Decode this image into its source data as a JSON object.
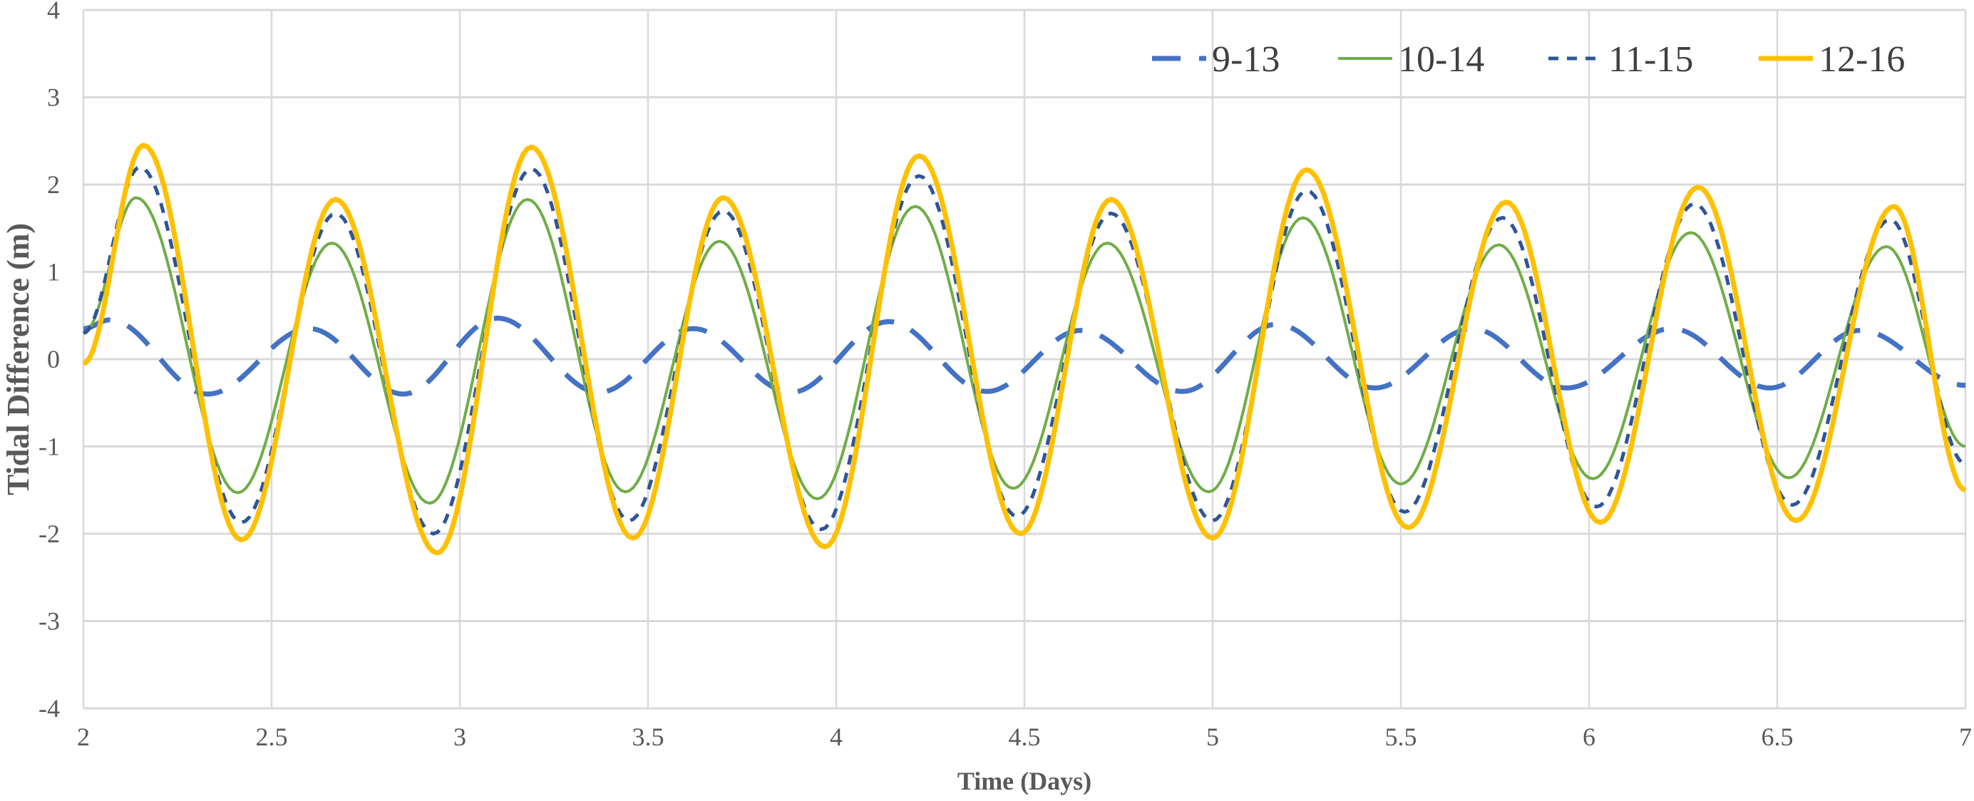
{
  "chart_data": {
    "type": "line",
    "title": "",
    "xlabel": "Time (Days)",
    "ylabel": "Tidal Difference (m)",
    "xlim": [
      2,
      7
    ],
    "ylim": [
      -4,
      4
    ],
    "xticks": [
      "2",
      "2.5",
      "3",
      "3.5",
      "4",
      "4.5",
      "5",
      "5.5",
      "6",
      "6.5",
      "7"
    ],
    "yticks": [
      "4",
      "3",
      "2",
      "1",
      "0",
      "-1",
      "-2",
      "-3",
      "-4"
    ],
    "grid": true,
    "legend_position": "top-right",
    "series": [
      {
        "name": "9-13",
        "color": "#4472C4",
        "style": "long-dash",
        "points": [
          [
            2,
            0.35
          ],
          [
            2.07,
            0.45
          ],
          [
            2.33,
            -0.4
          ],
          [
            2.6,
            0.35
          ],
          [
            2.85,
            -0.4
          ],
          [
            3.1,
            0.47
          ],
          [
            3.37,
            -0.38
          ],
          [
            3.62,
            0.35
          ],
          [
            3.88,
            -0.38
          ],
          [
            4.14,
            0.43
          ],
          [
            4.4,
            -0.37
          ],
          [
            4.65,
            0.33
          ],
          [
            4.92,
            -0.37
          ],
          [
            5.17,
            0.4
          ],
          [
            5.43,
            -0.33
          ],
          [
            5.69,
            0.35
          ],
          [
            5.94,
            -0.33
          ],
          [
            6.22,
            0.35
          ],
          [
            6.48,
            -0.33
          ],
          [
            6.72,
            0.33
          ],
          [
            7,
            -0.3
          ]
        ]
      },
      {
        "name": "10-14",
        "color": "#70AD47",
        "style": "solid",
        "points": [
          [
            2,
            0.3
          ],
          [
            2.14,
            1.85
          ],
          [
            2.41,
            -1.53
          ],
          [
            2.66,
            1.33
          ],
          [
            2.92,
            -1.65
          ],
          [
            3.18,
            1.83
          ],
          [
            3.44,
            -1.52
          ],
          [
            3.69,
            1.35
          ],
          [
            3.95,
            -1.6
          ],
          [
            4.21,
            1.75
          ],
          [
            4.47,
            -1.48
          ],
          [
            4.72,
            1.33
          ],
          [
            4.99,
            -1.52
          ],
          [
            5.24,
            1.62
          ],
          [
            5.5,
            -1.43
          ],
          [
            5.76,
            1.31
          ],
          [
            6.01,
            -1.37
          ],
          [
            6.27,
            1.45
          ],
          [
            6.53,
            -1.36
          ],
          [
            6.79,
            1.29
          ],
          [
            7,
            -1.0
          ]
        ]
      },
      {
        "name": "11-15",
        "color": "#2F5597",
        "style": "short-dash",
        "points": [
          [
            2,
            0.3
          ],
          [
            2.15,
            2.2
          ],
          [
            2.42,
            -1.87
          ],
          [
            2.67,
            1.67
          ],
          [
            2.93,
            -2.0
          ],
          [
            3.19,
            2.18
          ],
          [
            3.45,
            -1.85
          ],
          [
            3.7,
            1.7
          ],
          [
            3.96,
            -1.95
          ],
          [
            4.22,
            2.1
          ],
          [
            4.48,
            -1.8
          ],
          [
            4.73,
            1.67
          ],
          [
            5.0,
            -1.85
          ],
          [
            5.25,
            1.93
          ],
          [
            5.51,
            -1.75
          ],
          [
            5.77,
            1.62
          ],
          [
            6.02,
            -1.69
          ],
          [
            6.28,
            1.78
          ],
          [
            6.54,
            -1.67
          ],
          [
            6.8,
            1.6
          ],
          [
            7,
            -1.2
          ]
        ]
      },
      {
        "name": "12-16",
        "color": "#FFC000",
        "style": "solid-thick",
        "points": [
          [
            2,
            -0.05
          ],
          [
            2.16,
            2.45
          ],
          [
            2.42,
            -2.07
          ],
          [
            2.67,
            1.83
          ],
          [
            2.94,
            -2.22
          ],
          [
            3.19,
            2.43
          ],
          [
            3.46,
            -2.05
          ],
          [
            3.7,
            1.85
          ],
          [
            3.97,
            -2.15
          ],
          [
            4.22,
            2.33
          ],
          [
            4.49,
            -2.0
          ],
          [
            4.73,
            1.83
          ],
          [
            5.0,
            -2.05
          ],
          [
            5.25,
            2.17
          ],
          [
            5.52,
            -1.93
          ],
          [
            5.78,
            1.8
          ],
          [
            6.03,
            -1.87
          ],
          [
            6.29,
            1.97
          ],
          [
            6.55,
            -1.85
          ],
          [
            6.81,
            1.75
          ],
          [
            7,
            -1.5
          ]
        ]
      }
    ]
  }
}
